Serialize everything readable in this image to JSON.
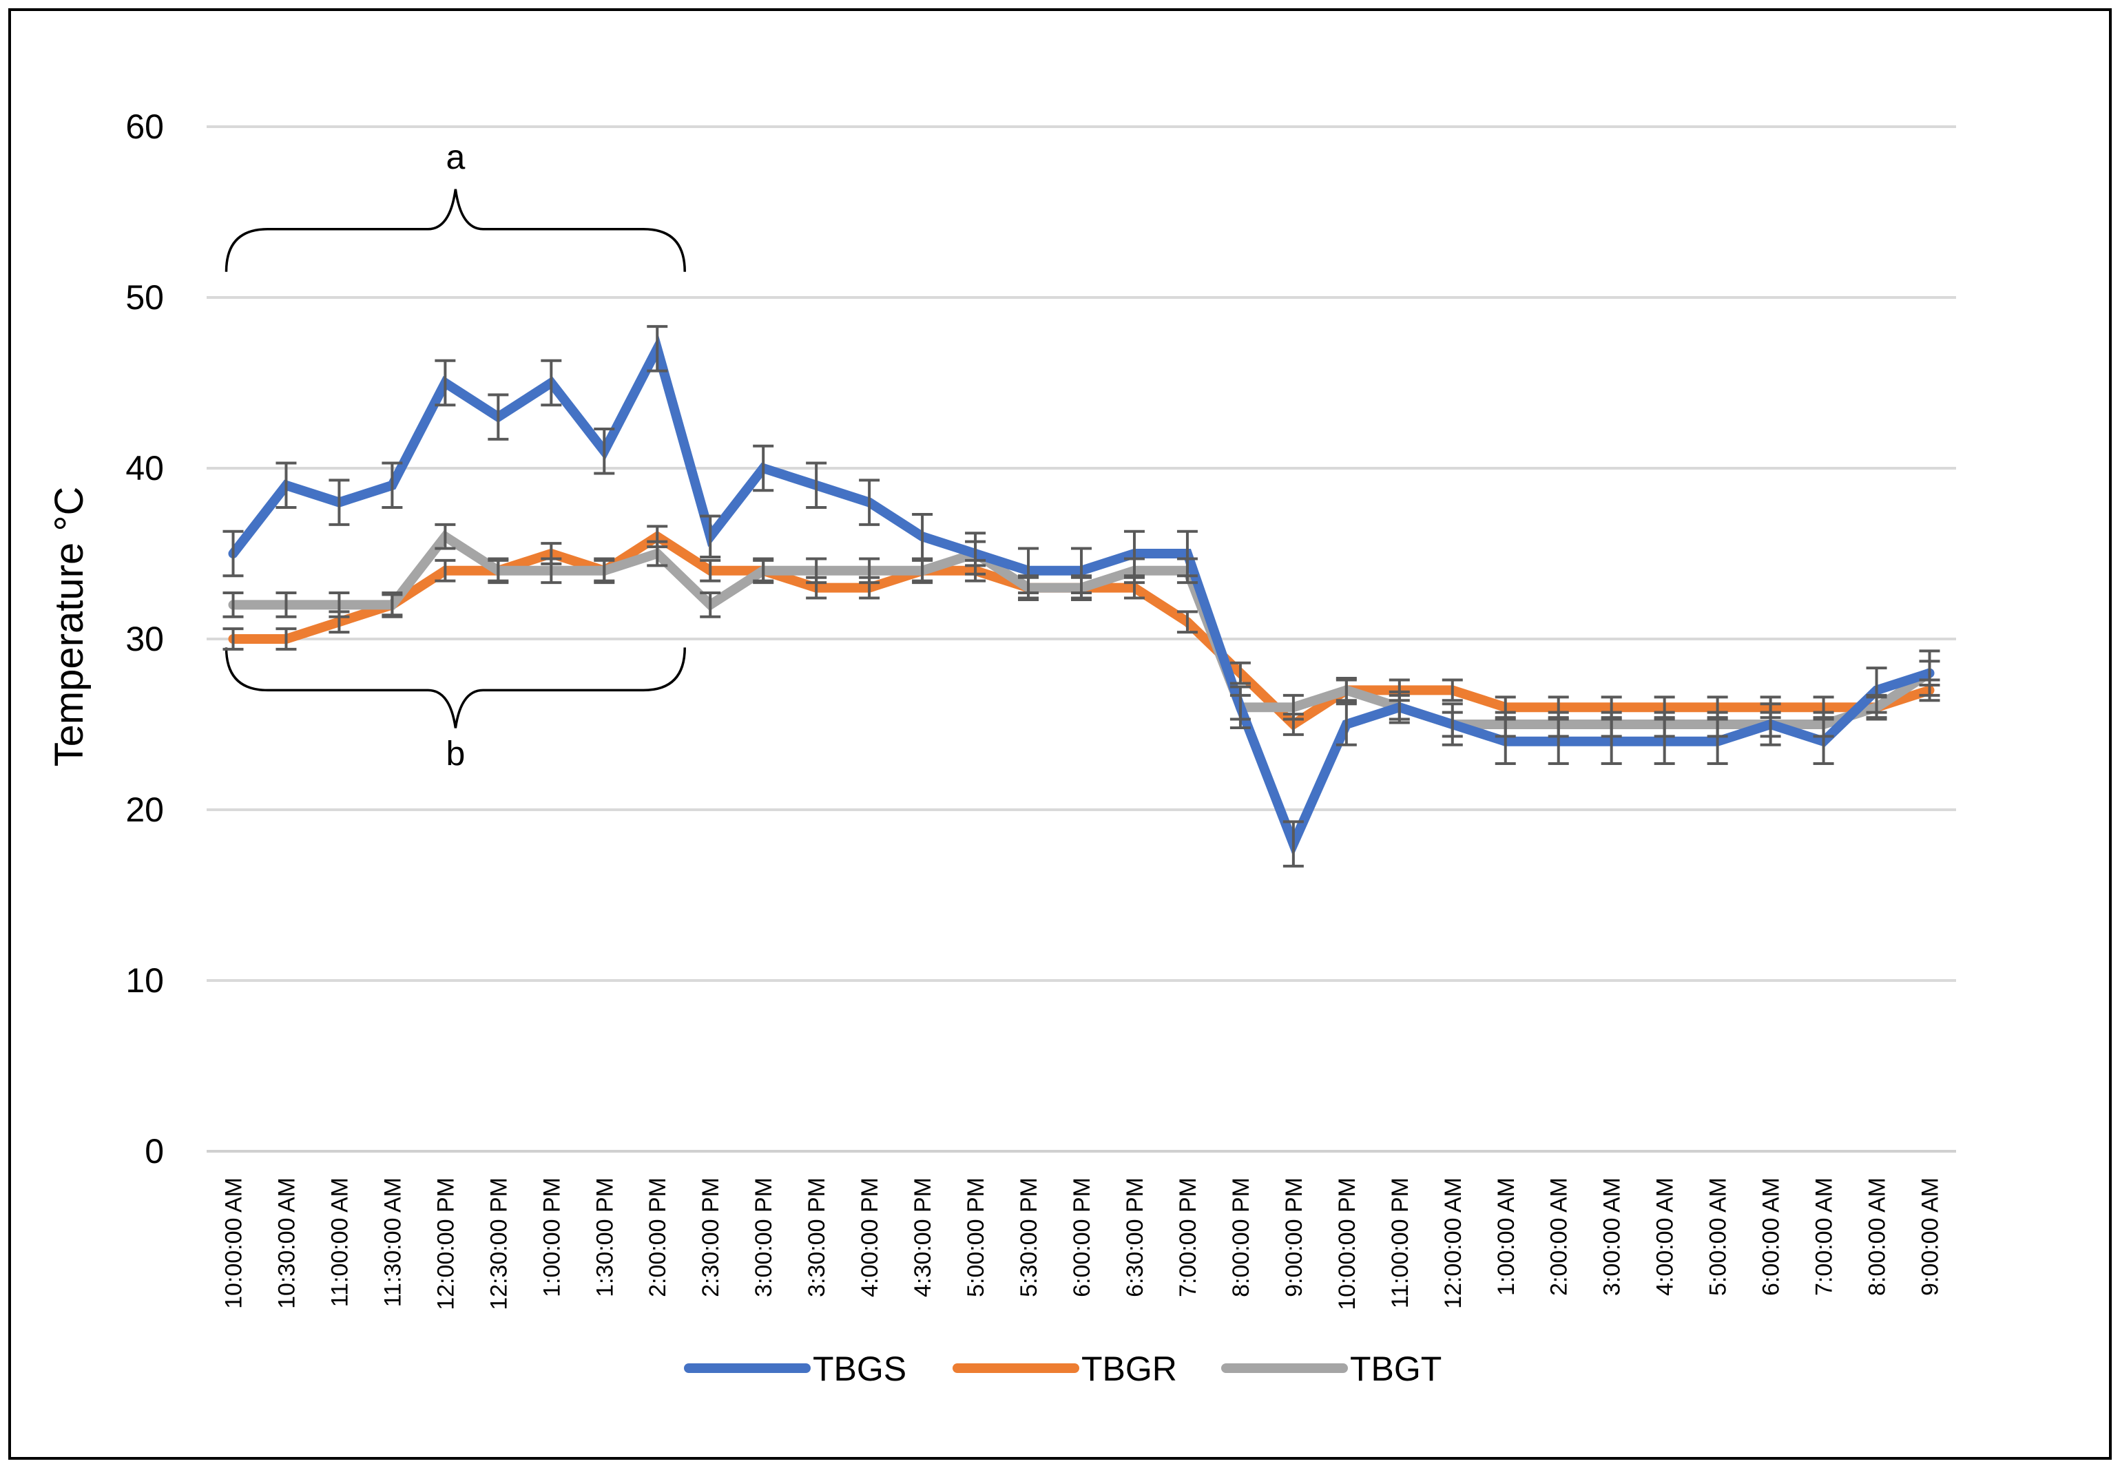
{
  "chart_data": {
    "type": "line",
    "title": "",
    "xlabel": "",
    "ylabel": "Temperature °C",
    "ylim": [
      0,
      60
    ],
    "yticks": [
      0,
      10,
      20,
      30,
      40,
      50,
      60
    ],
    "grid": true,
    "legend_position": "bottom",
    "categories": [
      "10:00:00 AM",
      "10:30:00 AM",
      "11:00:00 AM",
      "11:30:00 AM",
      "12:00:00 PM",
      "12:30:00 PM",
      "1:00:00 PM",
      "1:30:00 PM",
      "2:00:00 PM",
      "2:30:00 PM",
      "3:00:00 PM",
      "3:30:00 PM",
      "4:00:00 PM",
      "4:30:00 PM",
      "5:00:00 PM",
      "5:30:00 PM",
      "6:00:00 PM",
      "6:30:00 PM",
      "7:00:00 PM",
      "8:00:00 PM",
      "9:00:00 PM",
      "10:00:00 PM",
      "11:00:00 PM",
      "12:00:00 AM",
      "1:00:00 AM",
      "2:00:00 AM",
      "3:00:00 AM",
      "4:00:00 AM",
      "5:00:00 AM",
      "6:00:00 AM",
      "7:00:00 AM",
      "8:00:00 AM",
      "9:00:00 AM"
    ],
    "series": [
      {
        "name": "TBGS",
        "color": "#4472c4",
        "values": [
          35,
          39,
          38,
          39,
          45,
          43,
          45,
          41,
          47,
          36,
          40,
          39,
          38,
          36,
          35,
          34,
          34,
          35,
          35,
          26,
          18,
          25,
          26,
          25,
          24,
          24,
          24,
          24,
          24,
          25,
          24,
          27,
          28
        ],
        "errors": [
          1.3,
          1.3,
          1.3,
          1.3,
          1.3,
          1.3,
          1.3,
          1.3,
          1.3,
          1.2,
          1.3,
          1.3,
          1.3,
          1.3,
          1.2,
          1.3,
          1.3,
          1.3,
          1.3,
          1.2,
          1.3,
          1.2,
          0.9,
          1.2,
          1.3,
          1.3,
          1.3,
          1.3,
          1.3,
          1.2,
          1.3,
          1.3,
          1.3
        ]
      },
      {
        "name": "TBGR",
        "color": "#ed7d31",
        "values": [
          30,
          30,
          31,
          32,
          34,
          34,
          35,
          34,
          36,
          34,
          34,
          33,
          33,
          34,
          34,
          33,
          33,
          33,
          31,
          28,
          25,
          27,
          27,
          27,
          26,
          26,
          26,
          26,
          26,
          26,
          26,
          26,
          27
        ],
        "errors": [
          0.6,
          0.6,
          0.6,
          0.6,
          0.6,
          0.6,
          0.6,
          0.6,
          0.6,
          0.6,
          0.6,
          0.6,
          0.6,
          0.6,
          0.6,
          0.6,
          0.6,
          0.6,
          0.6,
          0.6,
          0.6,
          0.6,
          0.6,
          0.6,
          0.6,
          0.6,
          0.6,
          0.6,
          0.6,
          0.6,
          0.6,
          0.6,
          0.6
        ]
      },
      {
        "name": "TBGT",
        "color": "#a5a5a5",
        "values": [
          32,
          32,
          32,
          32,
          36,
          34,
          34,
          34,
          35,
          32,
          34,
          34,
          34,
          34,
          35,
          33,
          33,
          34,
          34,
          26,
          26,
          27,
          26,
          25,
          25,
          25,
          25,
          25,
          25,
          25,
          25,
          26,
          28
        ],
        "errors": [
          0.7,
          0.7,
          0.7,
          0.7,
          0.7,
          0.7,
          0.7,
          0.7,
          0.7,
          0.7,
          0.7,
          0.7,
          0.7,
          0.7,
          0.7,
          0.7,
          0.7,
          0.7,
          0.7,
          0.7,
          0.7,
          0.7,
          0.7,
          0.7,
          0.7,
          0.7,
          0.7,
          0.7,
          0.7,
          0.7,
          0.7,
          0.7,
          0.7
        ]
      }
    ],
    "annotations": [
      {
        "label": "a",
        "from_category": 0,
        "to_category": 8,
        "level": 51.5,
        "side": "above"
      },
      {
        "label": "b",
        "from_category": 0,
        "to_category": 8,
        "level": 29.5,
        "side": "below"
      }
    ]
  }
}
